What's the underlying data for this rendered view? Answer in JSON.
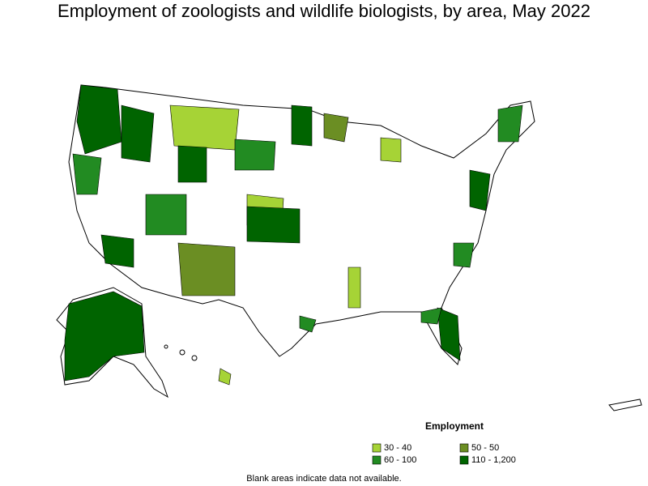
{
  "title": "Employment of zoologists and wildlife biologists, by area, May 2022",
  "legend": {
    "title": "Employment",
    "items": [
      {
        "label": "30 - 40",
        "color": "#a6d336"
      },
      {
        "label": "50 - 50",
        "color": "#6b8e23"
      },
      {
        "label": "60 - 100",
        "color": "#228b22"
      },
      {
        "label": "110 - 1,200",
        "color": "#006400"
      }
    ]
  },
  "footnote": "Blank areas indicate data not available."
}
